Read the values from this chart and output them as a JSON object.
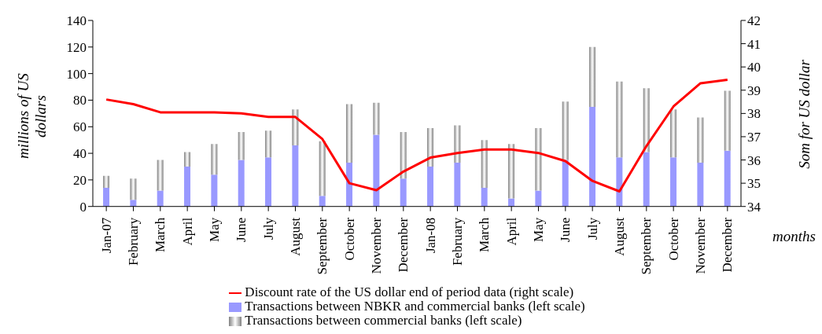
{
  "chart_data": {
    "type": "bar",
    "stacked": true,
    "categories": [
      "Jan-07",
      "February",
      "March",
      "April",
      "May",
      "June",
      "July",
      "August",
      "September",
      "October",
      "November",
      "December",
      "Jan-08",
      "February",
      "March",
      "April",
      "May",
      "June",
      "July",
      "August",
      "September",
      "October",
      "November",
      "December"
    ],
    "series": [
      {
        "name": "Transactions between NBKR and commercial banks (left scale)",
        "color": "#9999ff",
        "values": [
          14,
          5,
          12,
          30,
          24,
          35,
          37,
          46,
          8,
          33,
          54,
          21,
          30,
          33,
          14,
          6,
          12,
          35,
          75,
          37,
          41,
          37,
          33,
          42
        ]
      },
      {
        "name": "Transactions between commercial banks (left scale)",
        "color": "#808080",
        "values": [
          9,
          16,
          23,
          11,
          23,
          21,
          20,
          27,
          41,
          44,
          24,
          35,
          29,
          28,
          36,
          41,
          47,
          44,
          45,
          57,
          48,
          36,
          34,
          45
        ]
      },
      {
        "name": "Discount rate of the US dollar end of period data (right scale)",
        "type": "line",
        "axis": "y2",
        "color": "#ff0000",
        "values": [
          38.6,
          38.4,
          38.05,
          38.05,
          38.05,
          38.0,
          37.85,
          37.85,
          36.9,
          35.0,
          34.7,
          35.5,
          36.1,
          36.3,
          36.45,
          36.45,
          36.3,
          35.95,
          35.1,
          34.65,
          36.6,
          38.3,
          39.3,
          39.45
        ]
      }
    ],
    "ylabel": "millions of US dollars",
    "y2label": "Som for US dollar",
    "xlabel": "months",
    "ylim": [
      0,
      140
    ],
    "yticks": [
      0,
      20,
      40,
      60,
      80,
      100,
      120,
      140
    ],
    "y2lim": [
      34,
      42
    ],
    "y2ticks": [
      34,
      35,
      36,
      37,
      38,
      39,
      40,
      41,
      42
    ],
    "marker": "none",
    "line_style": "solid",
    "legend": "bottom"
  }
}
